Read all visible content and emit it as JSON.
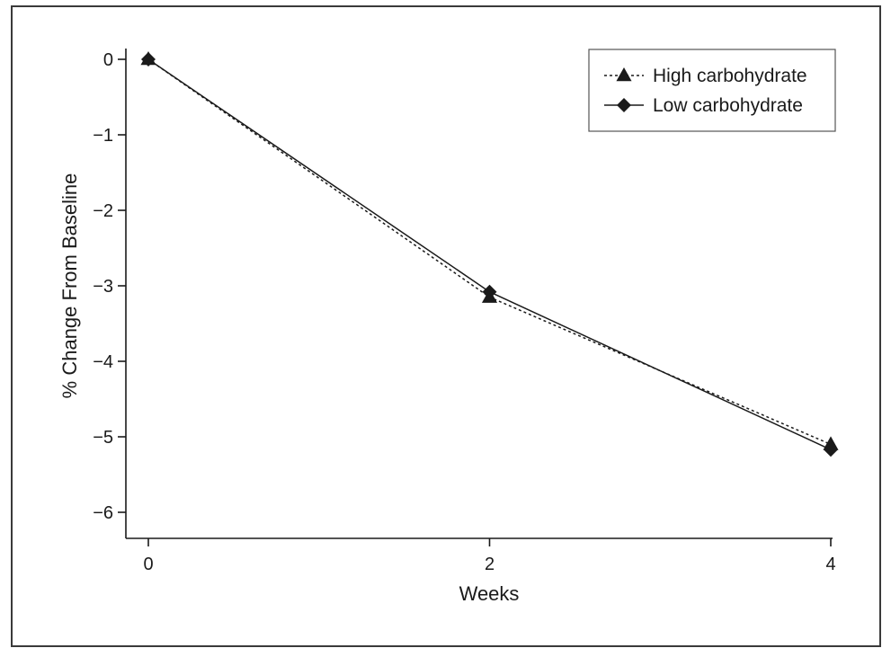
{
  "chart_data": {
    "type": "line",
    "title": "",
    "xlabel": "Weeks",
    "ylabel": "% Change From Baseline",
    "xlim": [
      0,
      4
    ],
    "ylim": [
      -6.35,
      0.1
    ],
    "x_ticks": [
      0,
      2,
      4
    ],
    "y_ticks": [
      0,
      -1,
      -2,
      -3,
      -4,
      -5,
      -6
    ],
    "y_tick_labels": [
      "0",
      "−1",
      "−2",
      "−3",
      "−4",
      "−5",
      "−6"
    ],
    "grid": false,
    "legend_position": "top-right",
    "series": [
      {
        "name": "High carbohydrate",
        "marker": "triangle",
        "line_style": "dotted",
        "x": [
          0,
          2,
          4
        ],
        "y": [
          0,
          -3.15,
          -5.1
        ]
      },
      {
        "name": "Low carbohydrate",
        "marker": "diamond",
        "line_style": "solid",
        "x": [
          0,
          2,
          4
        ],
        "y": [
          0,
          -3.08,
          -5.17
        ]
      }
    ],
    "colors": {
      "ink": "#1a1a1a",
      "frame": "#3a3a3a"
    }
  }
}
